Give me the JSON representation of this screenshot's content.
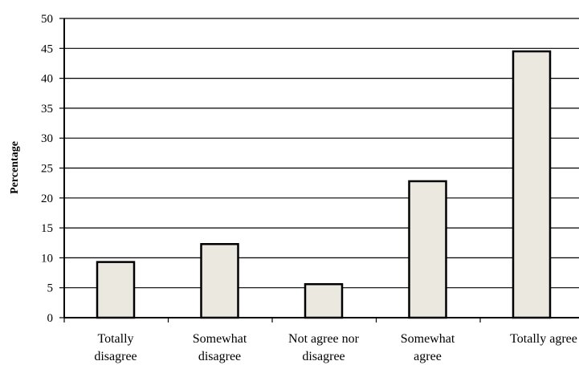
{
  "chart_data": {
    "type": "bar",
    "title": "",
    "xlabel": "",
    "ylabel": "Percentage",
    "ylim": [
      0,
      50
    ],
    "yticks": [
      0,
      5,
      10,
      15,
      20,
      25,
      30,
      35,
      40,
      45,
      50
    ],
    "grid": true,
    "categories": [
      [
        "Totally",
        "disagree"
      ],
      [
        "Somewhat",
        "disagree"
      ],
      [
        "Not agree nor",
        "disagree"
      ],
      [
        "Somewhat",
        "agree"
      ],
      [
        "Totally agree"
      ]
    ],
    "values": [
      9.3,
      12.3,
      5.6,
      22.8,
      44.5
    ],
    "colors": {
      "bar_fill": "#ebe8df",
      "bar_stroke": "#000000",
      "grid": "#000000"
    }
  }
}
